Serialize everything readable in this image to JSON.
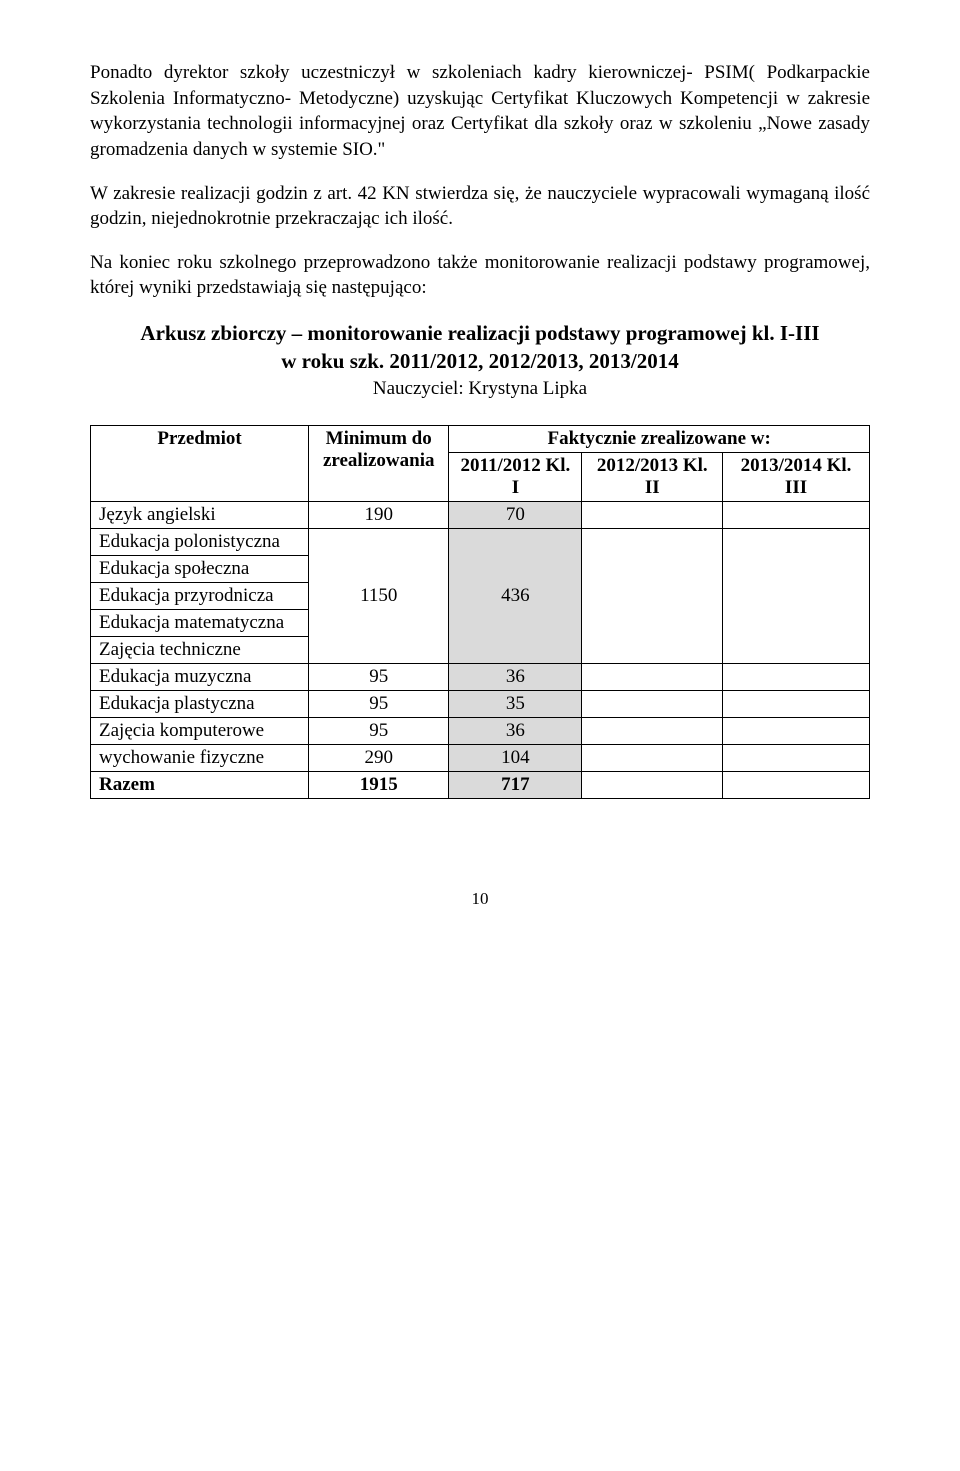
{
  "paragraphs": {
    "p1": "Ponadto dyrektor szkoły uczestniczył w szkoleniach kadry kierowniczej- PSIM( Podkarpackie Szkolenia Informatyczno- Metodyczne) uzyskując Certyfikat Kluczowych Kompetencji w zakresie wykorzystania technologii informacyjnej oraz Certyfikat dla szkoły oraz w szkoleniu „Nowe zasady gromadzenia danych w systemie SIO.\"",
    "p2": "W zakresie realizacji godzin z art.  42 KN stwierdza się, że nauczyciele wypracowali wymaganą ilość godzin, niejednokrotnie przekraczając ich ilość.",
    "p3": "Na koniec roku szkolnego przeprowadzono także monitorowanie  realizacji podstawy programowej, której wyniki przedstawiają się następująco:"
  },
  "heading": {
    "line1": "Arkusz zbiorczy – monitorowanie realizacji podstawy programowej kl. I-III",
    "line2": "w roku szk. 2011/2012, 2012/2013, 2013/2014",
    "teacher": "Nauczyciel: Krystyna Lipka"
  },
  "table": {
    "headers": {
      "subject": "Przedmiot",
      "minimum": "Minimum do zrealizowania",
      "actual": "Faktycznie zrealizowane w:",
      "y1": "2011/2012 Kl. I",
      "y2": "2012/2013 Kl. II",
      "y3": "2013/2014 Kl. III"
    },
    "rows": [
      {
        "label": "Język angielski",
        "min": "190",
        "v1": "70",
        "shaded": true,
        "merged_start": false,
        "merged_span": 1
      },
      {
        "label": "Edukacja polonistyczna",
        "min": "",
        "v1": "",
        "shaded": true,
        "merged_start": true,
        "merged_span": 5,
        "merged_min": "1150",
        "merged_v1": "436"
      },
      {
        "label": "Edukacja społeczna"
      },
      {
        "label": "Edukacja przyrodnicza"
      },
      {
        "label": "Edukacja matematyczna"
      },
      {
        "label": "Zajęcia  techniczne"
      },
      {
        "label": "Edukacja muzyczna",
        "min": "95",
        "v1": "36",
        "shaded": true
      },
      {
        "label": "Edukacja plastyczna",
        "min": "95",
        "v1": "35",
        "shaded": true
      },
      {
        "label": "Zajęcia komputerowe",
        "min": "95",
        "v1": "36",
        "shaded": true
      },
      {
        "label": "wychowanie fizyczne",
        "min": "290",
        "v1": "104",
        "shaded": true
      },
      {
        "label": "Razem",
        "min": "1915",
        "v1": "717",
        "shaded": true,
        "bold": true
      }
    ]
  },
  "page_number": "10",
  "colors": {
    "shaded_bg": "#dadada",
    "border": "#000000",
    "text": "#000000",
    "background": "#ffffff"
  }
}
